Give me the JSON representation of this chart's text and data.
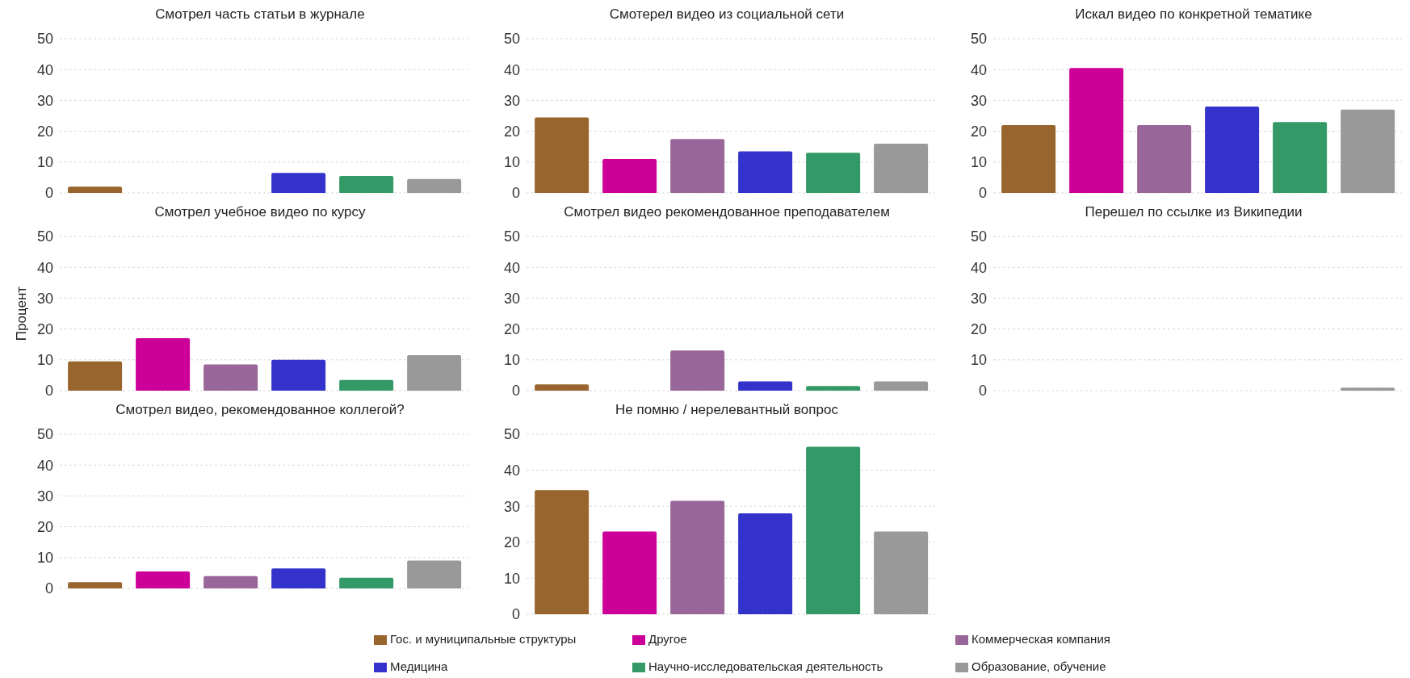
{
  "chart_data": [
    {
      "type": "bar",
      "title": "Смотрел часть статьи в журнале",
      "categories": [
        null
      ],
      "series": [
        {
          "color": "#98652f",
          "values": [
            2
          ]
        },
        {
          "color": "#cc0099",
          "values": [
            0
          ]
        },
        {
          "color": "#996699",
          "values": [
            0
          ]
        },
        {
          "color": "#3333cc",
          "values": [
            6.5
          ]
        },
        {
          "color": "#339966",
          "values": [
            5.5
          ]
        },
        {
          "color": "#999999",
          "values": [
            4.5
          ]
        }
      ],
      "ylim": [
        0,
        50
      ],
      "yticks": [
        0,
        10,
        20,
        30,
        40,
        50
      ],
      "grid": "y"
    },
    {
      "type": "bar",
      "title": "Смотерел видео из социальной сети",
      "categories": [
        null
      ],
      "series": [
        {
          "color": "#98652f",
          "values": [
            24.5
          ]
        },
        {
          "color": "#cc0099",
          "values": [
            11
          ]
        },
        {
          "color": "#996699",
          "values": [
            17.5
          ]
        },
        {
          "color": "#3333cc",
          "values": [
            13.5
          ]
        },
        {
          "color": "#339966",
          "values": [
            13
          ]
        },
        {
          "color": "#999999",
          "values": [
            16
          ]
        }
      ],
      "ylim": [
        0,
        50
      ],
      "yticks": [
        0,
        10,
        20,
        30,
        40,
        50
      ],
      "grid": "y"
    },
    {
      "type": "bar",
      "title": "Искал видео по конкретной тематике",
      "categories": [
        null
      ],
      "series": [
        {
          "color": "#98652f",
          "values": [
            22
          ]
        },
        {
          "color": "#cc0099",
          "values": [
            40.5
          ]
        },
        {
          "color": "#996699",
          "values": [
            22
          ]
        },
        {
          "color": "#3333cc",
          "values": [
            28
          ]
        },
        {
          "color": "#339966",
          "values": [
            23
          ]
        },
        {
          "color": "#999999",
          "values": [
            27
          ]
        }
      ],
      "ylim": [
        0,
        50
      ],
      "yticks": [
        0,
        10,
        20,
        30,
        40,
        50
      ],
      "grid": "y"
    },
    {
      "type": "bar",
      "title": "Смотрел учебное видео по курсу",
      "ylabel": "Процент",
      "categories": [
        null
      ],
      "series": [
        {
          "color": "#98652f",
          "values": [
            9.5
          ]
        },
        {
          "color": "#cc0099",
          "values": [
            17
          ]
        },
        {
          "color": "#996699",
          "values": [
            8.5
          ]
        },
        {
          "color": "#3333cc",
          "values": [
            10
          ]
        },
        {
          "color": "#339966",
          "values": [
            3.5
          ]
        },
        {
          "color": "#999999",
          "values": [
            11.5
          ]
        }
      ],
      "ylim": [
        0,
        50
      ],
      "yticks": [
        0,
        10,
        20,
        30,
        40,
        50
      ],
      "grid": "y"
    },
    {
      "type": "bar",
      "title": "Смотрел видео рекомендованное преподавателем",
      "categories": [
        null
      ],
      "series": [
        {
          "color": "#98652f",
          "values": [
            2
          ]
        },
        {
          "color": "#cc0099",
          "values": [
            0
          ]
        },
        {
          "color": "#996699",
          "values": [
            13
          ]
        },
        {
          "color": "#3333cc",
          "values": [
            3
          ]
        },
        {
          "color": "#339966",
          "values": [
            1.5
          ]
        },
        {
          "color": "#999999",
          "values": [
            3
          ]
        }
      ],
      "ylim": [
        0,
        50
      ],
      "yticks": [
        0,
        10,
        20,
        30,
        40,
        50
      ],
      "grid": "y"
    },
    {
      "type": "bar",
      "title": "Перешел по ссылке из Википедии",
      "categories": [
        null
      ],
      "series": [
        {
          "color": "#98652f",
          "values": [
            0
          ]
        },
        {
          "color": "#cc0099",
          "values": [
            0
          ]
        },
        {
          "color": "#996699",
          "values": [
            0
          ]
        },
        {
          "color": "#3333cc",
          "values": [
            0
          ]
        },
        {
          "color": "#339966",
          "values": [
            0
          ]
        },
        {
          "color": "#999999",
          "values": [
            1
          ]
        }
      ],
      "ylim": [
        0,
        50
      ],
      "yticks": [
        0,
        10,
        20,
        30,
        40,
        50
      ],
      "grid": "y"
    },
    {
      "type": "bar",
      "title": "Смотрел видео, рекомендованное коллегой?",
      "categories": [
        null
      ],
      "series": [
        {
          "color": "#98652f",
          "values": [
            2
          ]
        },
        {
          "color": "#cc0099",
          "values": [
            5.5
          ]
        },
        {
          "color": "#996699",
          "values": [
            4
          ]
        },
        {
          "color": "#3333cc",
          "values": [
            6.5
          ]
        },
        {
          "color": "#339966",
          "values": [
            3.5
          ]
        },
        {
          "color": "#999999",
          "values": [
            9
          ]
        }
      ],
      "ylim": [
        0,
        50
      ],
      "yticks": [
        0,
        10,
        20,
        30,
        40,
        50
      ],
      "grid": "y"
    },
    {
      "type": "bar",
      "title": "Не помню / нерелевантный вопрос",
      "categories": [
        null
      ],
      "series": [
        {
          "name": "Гос. и муниципальные структуры",
          "color": "#98652f",
          "values": [
            34.5
          ]
        },
        {
          "name": "Другое",
          "color": "#cc0099",
          "values": [
            23
          ]
        },
        {
          "name": "Коммерческая компания",
          "color": "#996699",
          "values": [
            31.5
          ]
        },
        {
          "name": "Медицина",
          "color": "#3333cc",
          "values": [
            28
          ]
        },
        {
          "name": "Научно-исследовательская деятельность",
          "color": "#339966",
          "values": [
            46.5
          ]
        },
        {
          "name": "Образование, обучение",
          "color": "#999999",
          "values": [
            23
          ]
        }
      ],
      "ylim": [
        0,
        50
      ],
      "yticks": [
        0,
        10,
        20,
        30,
        40,
        50
      ],
      "grid": "y",
      "legend": "bottom"
    }
  ]
}
